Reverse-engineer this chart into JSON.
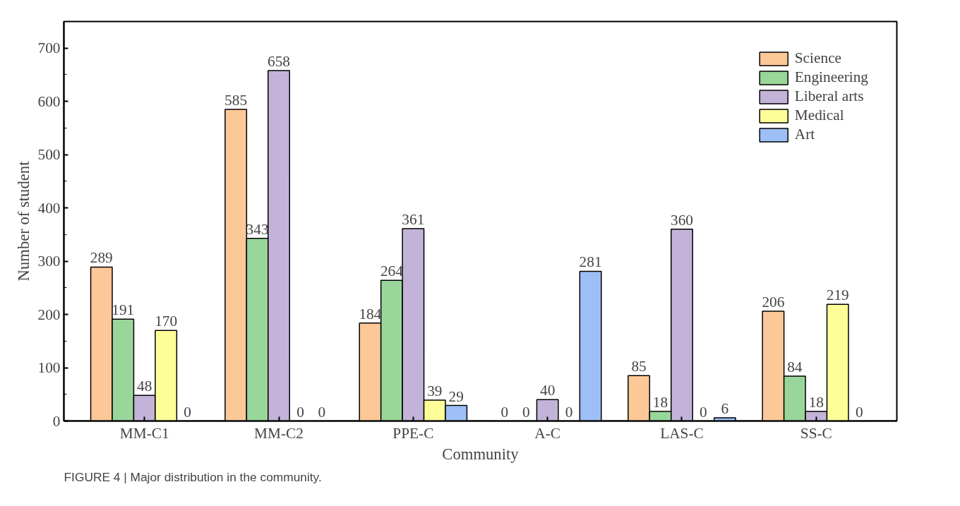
{
  "chart_data": {
    "type": "bar",
    "xlabel": "Community",
    "ylabel": "Number of student",
    "categories": [
      "MM-C1",
      "MM-C2",
      "PPE-C",
      "A-C",
      "LAS-C",
      "SS-C"
    ],
    "series": [
      {
        "name": "Science",
        "color": "#fdc897",
        "values": [
          289,
          585,
          184,
          0,
          85,
          206
        ]
      },
      {
        "name": "Engineering",
        "color": "#99d69a",
        "values": [
          191,
          343,
          264,
          0,
          18,
          84
        ]
      },
      {
        "name": "Liberal arts",
        "color": "#c3b3d8",
        "values": [
          48,
          658,
          361,
          40,
          360,
          18
        ]
      },
      {
        "name": "Medical",
        "color": "#fefe99",
        "values": [
          170,
          0,
          39,
          0,
          0,
          219
        ]
      },
      {
        "name": "Art",
        "color": "#9dbff5",
        "values": [
          0,
          0,
          29,
          281,
          6,
          0
        ]
      }
    ],
    "ylim": [
      0,
      750
    ],
    "yticks": [
      0,
      100,
      200,
      300,
      400,
      500,
      600,
      700
    ],
    "data_labels": true,
    "legend": "top right",
    "grid": false,
    "annotations": [
      "FIGURE 4 | Major distribution in the community."
    ]
  }
}
